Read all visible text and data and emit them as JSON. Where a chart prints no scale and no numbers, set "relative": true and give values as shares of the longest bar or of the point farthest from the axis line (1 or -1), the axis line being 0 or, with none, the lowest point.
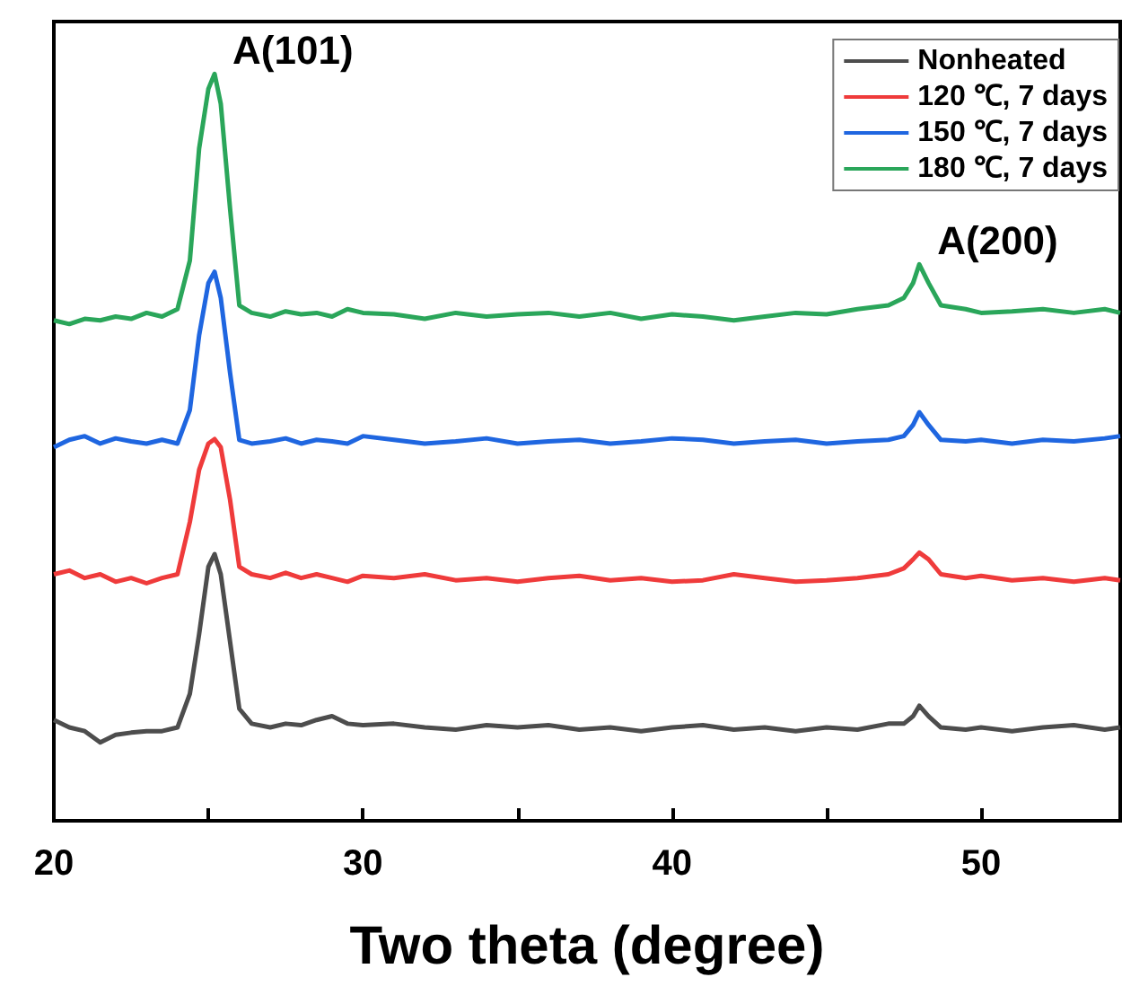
{
  "chart_data": {
    "type": "line",
    "xlabel": "Two theta (degree)",
    "relative": true,
    "tick_labels": "x",
    "legend": "top right",
    "marker": "none",
    "line_style": "solid",
    "xlim": [
      20,
      54.5
    ],
    "xticks": [
      20,
      {
        "value": 25,
        "label": null
      },
      30,
      {
        "value": 35,
        "label": null
      },
      40,
      {
        "value": 45,
        "label": null
      },
      50
    ],
    "x": [
      20,
      20.5,
      21,
      21.5,
      22,
      22.5,
      23,
      23.5,
      24,
      24.4,
      24.7,
      25.0,
      25.2,
      25.4,
      25.7,
      26.0,
      26.4,
      27,
      27.5,
      28,
      28.5,
      29,
      29.5,
      30,
      31,
      32,
      33,
      34,
      35,
      36,
      37,
      38,
      39,
      40,
      41,
      42,
      43,
      44,
      45,
      46,
      47,
      47.5,
      47.8,
      48.0,
      48.3,
      48.7,
      49.5,
      50,
      51,
      52,
      53,
      54,
      54.5
    ],
    "series": [
      {
        "name": "Nonheated",
        "color": "#4d4d4d",
        "values": [
          0.135,
          0.125,
          0.12,
          0.105,
          0.115,
          0.118,
          0.12,
          0.12,
          0.125,
          0.17,
          0.25,
          0.34,
          0.357,
          0.33,
          0.24,
          0.15,
          0.13,
          0.125,
          0.13,
          0.128,
          0.135,
          0.14,
          0.13,
          0.128,
          0.13,
          0.125,
          0.122,
          0.128,
          0.125,
          0.128,
          0.122,
          0.125,
          0.12,
          0.125,
          0.128,
          0.122,
          0.125,
          0.12,
          0.125,
          0.122,
          0.13,
          0.13,
          0.14,
          0.154,
          0.14,
          0.125,
          0.122,
          0.125,
          0.12,
          0.125,
          0.128,
          0.122,
          0.125
        ]
      },
      {
        "name": "120 ℃, 7 days",
        "color": "#ef3b3b",
        "values": [
          0.33,
          0.335,
          0.325,
          0.33,
          0.32,
          0.325,
          0.318,
          0.325,
          0.33,
          0.4,
          0.47,
          0.505,
          0.511,
          0.5,
          0.43,
          0.34,
          0.33,
          0.325,
          0.332,
          0.325,
          0.33,
          0.325,
          0.32,
          0.328,
          0.325,
          0.33,
          0.322,
          0.325,
          0.32,
          0.325,
          0.328,
          0.322,
          0.325,
          0.32,
          0.322,
          0.33,
          0.325,
          0.32,
          0.322,
          0.325,
          0.33,
          0.338,
          0.35,
          0.359,
          0.35,
          0.33,
          0.325,
          0.328,
          0.322,
          0.325,
          0.32,
          0.325,
          0.322
        ]
      },
      {
        "name": "150 ℃, 7 days",
        "color": "#1f66e0",
        "values": [
          0.5,
          0.51,
          0.515,
          0.505,
          0.512,
          0.508,
          0.505,
          0.51,
          0.505,
          0.55,
          0.65,
          0.72,
          0.735,
          0.7,
          0.6,
          0.51,
          0.505,
          0.508,
          0.512,
          0.505,
          0.51,
          0.508,
          0.505,
          0.515,
          0.51,
          0.505,
          0.508,
          0.512,
          0.505,
          0.508,
          0.51,
          0.505,
          0.508,
          0.512,
          0.51,
          0.505,
          0.508,
          0.51,
          0.505,
          0.508,
          0.51,
          0.515,
          0.53,
          0.547,
          0.53,
          0.51,
          0.508,
          0.51,
          0.505,
          0.51,
          0.508,
          0.512,
          0.515
        ]
      },
      {
        "name": "180 ℃, 7 days",
        "color": "#2aa65a",
        "values": [
          0.67,
          0.665,
          0.672,
          0.67,
          0.675,
          0.672,
          0.68,
          0.675,
          0.685,
          0.75,
          0.9,
          0.98,
          1.0,
          0.96,
          0.82,
          0.69,
          0.68,
          0.675,
          0.682,
          0.678,
          0.68,
          0.675,
          0.685,
          0.68,
          0.678,
          0.672,
          0.68,
          0.675,
          0.678,
          0.68,
          0.675,
          0.68,
          0.672,
          0.678,
          0.675,
          0.67,
          0.675,
          0.68,
          0.678,
          0.685,
          0.69,
          0.7,
          0.72,
          0.745,
          0.72,
          0.69,
          0.685,
          0.68,
          0.682,
          0.685,
          0.68,
          0.685,
          0.68
        ]
      }
    ],
    "annotations": [
      {
        "text": "A(101)",
        "x": 25.2,
        "y": 1.0
      },
      {
        "text": "A(200)",
        "x": 48.0,
        "y": 0.745
      }
    ]
  }
}
